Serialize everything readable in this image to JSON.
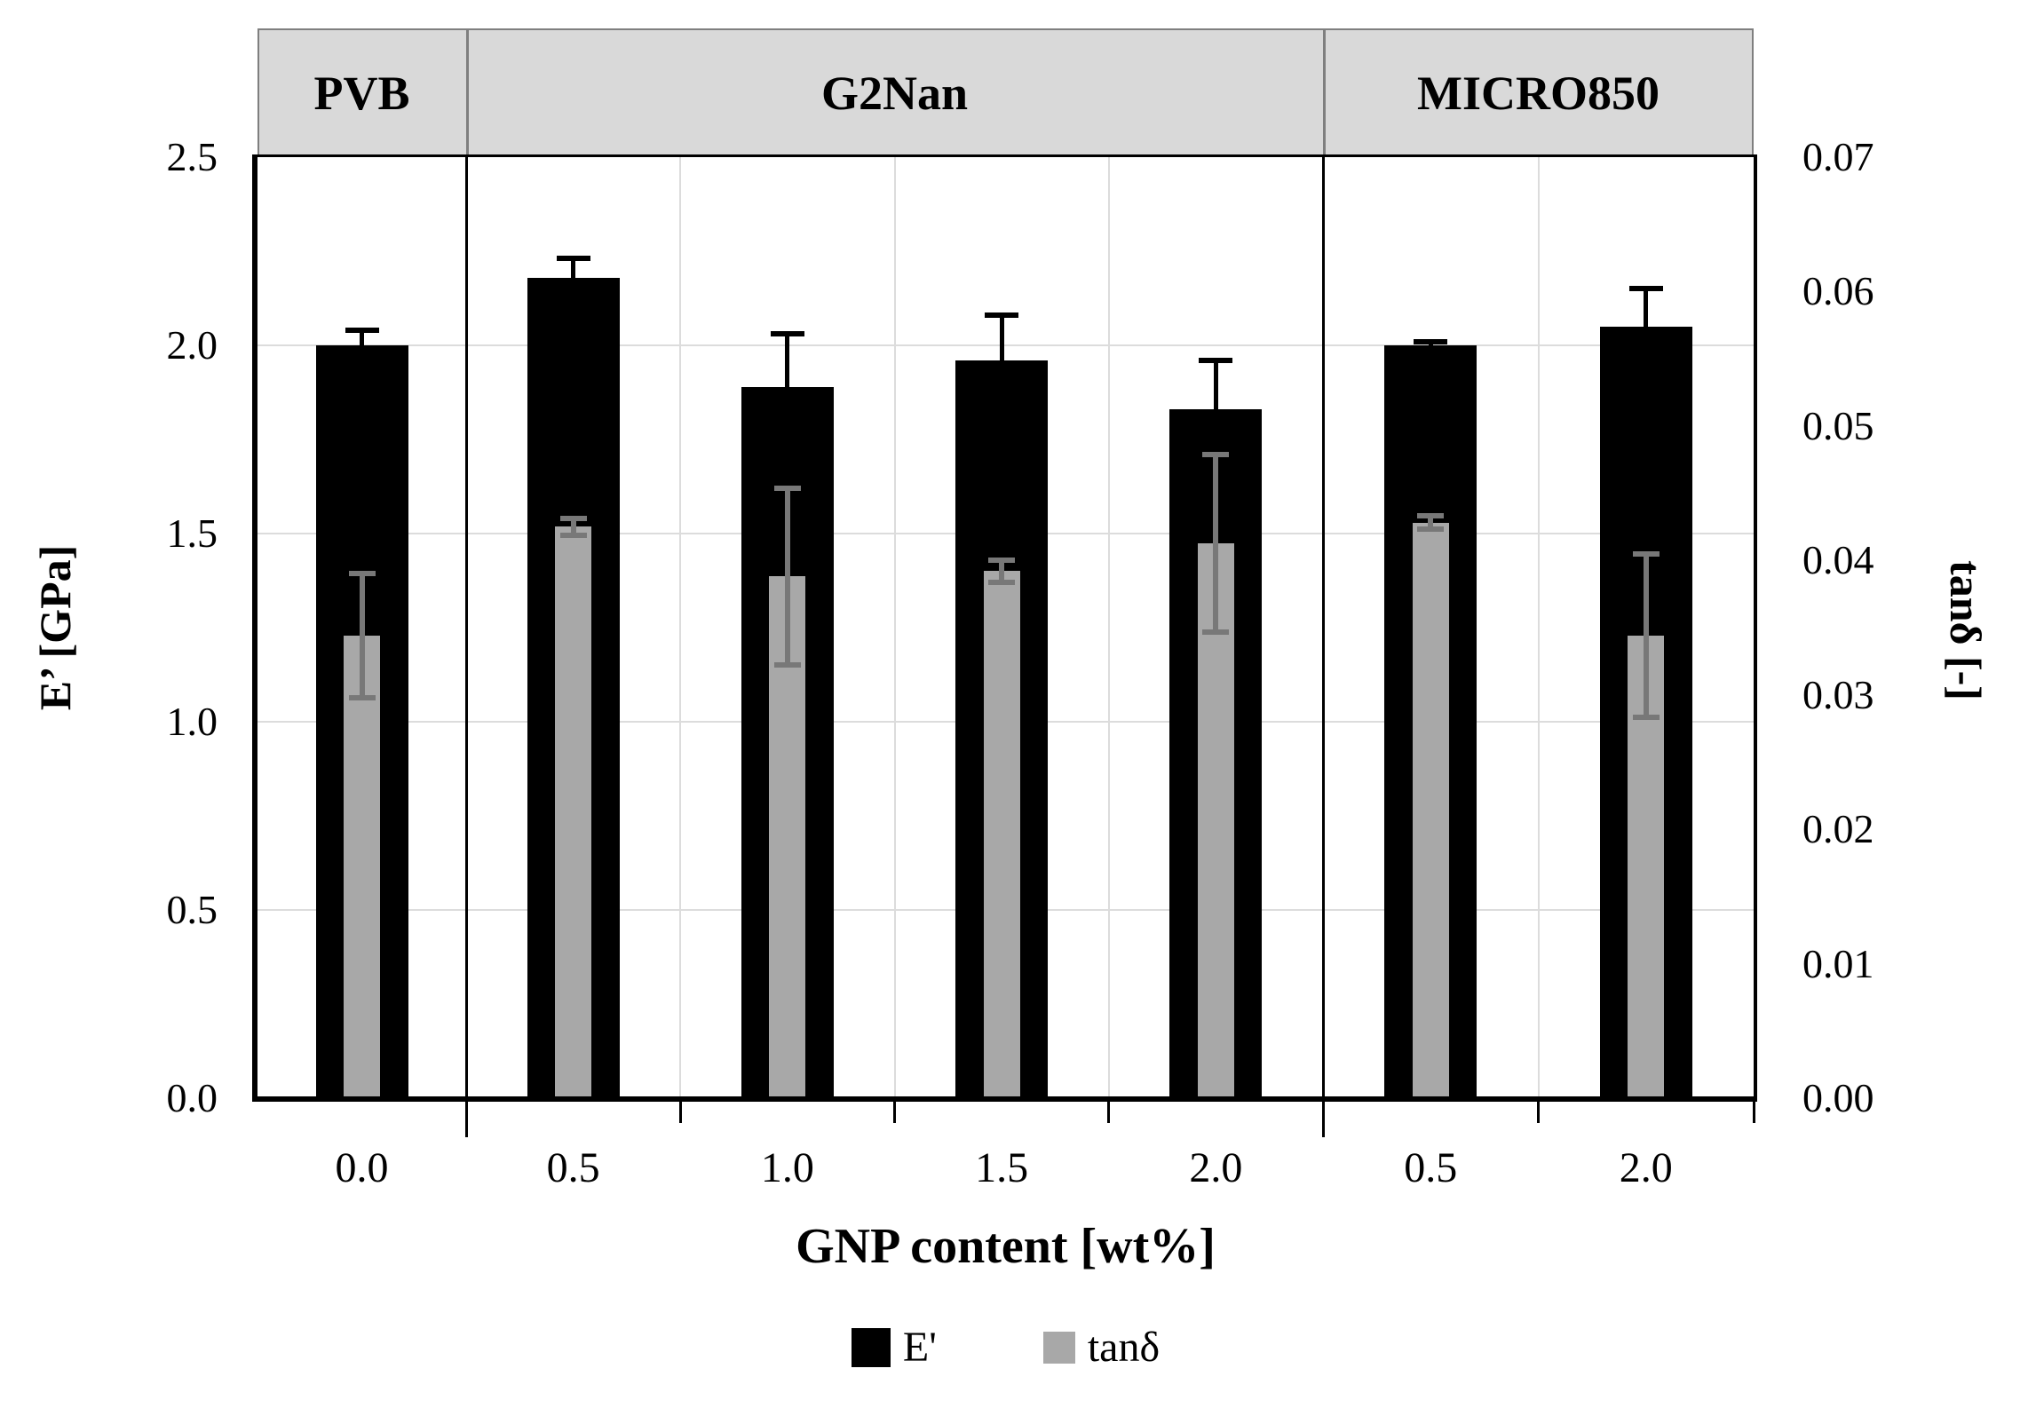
{
  "chart_data": {
    "type": "bar",
    "title": "",
    "x_axis": {
      "label": "GNP content [wt%]"
    },
    "left_axis": {
      "label": "E’ [GPa]",
      "min": 0.0,
      "max": 2.5,
      "tick_step": 0.5,
      "ticks": [
        "2.5",
        "2.0",
        "1.5",
        "1.0",
        "0.5",
        "0.0"
      ]
    },
    "right_axis": {
      "label": "tanδ [-]",
      "min": 0.0,
      "max": 0.07,
      "tick_step": 0.01,
      "ticks": [
        "0.07",
        "0.06",
        "0.05",
        "0.04",
        "0.03",
        "0.02",
        "0.01",
        "0.00"
      ]
    },
    "sections": [
      {
        "label": "PVB",
        "categories": [
          "0.0"
        ]
      },
      {
        "label": "G2Nan",
        "categories": [
          "0.5",
          "1.0",
          "1.5",
          "2.0"
        ]
      },
      {
        "label": "MICRO850",
        "categories": [
          "0.5",
          "2.0"
        ]
      }
    ],
    "categories": [
      "0.0",
      "0.5",
      "1.0",
      "1.5",
      "2.0",
      "0.5",
      "2.0"
    ],
    "series": [
      {
        "name": "E'",
        "axis": "left",
        "color": "#000000",
        "values": [
          2.0,
          2.18,
          1.89,
          1.96,
          1.83,
          2.0,
          2.05
        ],
        "errors_plus": [
          0.04,
          0.05,
          0.14,
          0.12,
          0.13,
          0.01,
          0.1
        ]
      },
      {
        "name": "tanδ",
        "axis": "right",
        "color": "#a8a8a8",
        "error_color": "#787878",
        "values": [
          0.0344,
          0.0425,
          0.0388,
          0.0392,
          0.0413,
          0.0428,
          0.0344
        ],
        "errors": [
          0.0046,
          0.0006,
          0.0066,
          0.0008,
          0.0066,
          0.0005,
          0.0061
        ]
      }
    ],
    "legend": [
      {
        "label": "E'",
        "color": "#000000"
      },
      {
        "label": "tanδ",
        "color": "#a8a8a8"
      }
    ],
    "grid": true,
    "gridline_color": "#dcdcdc",
    "header_fill": "#d9d9d9",
    "background": "#ffffff"
  }
}
